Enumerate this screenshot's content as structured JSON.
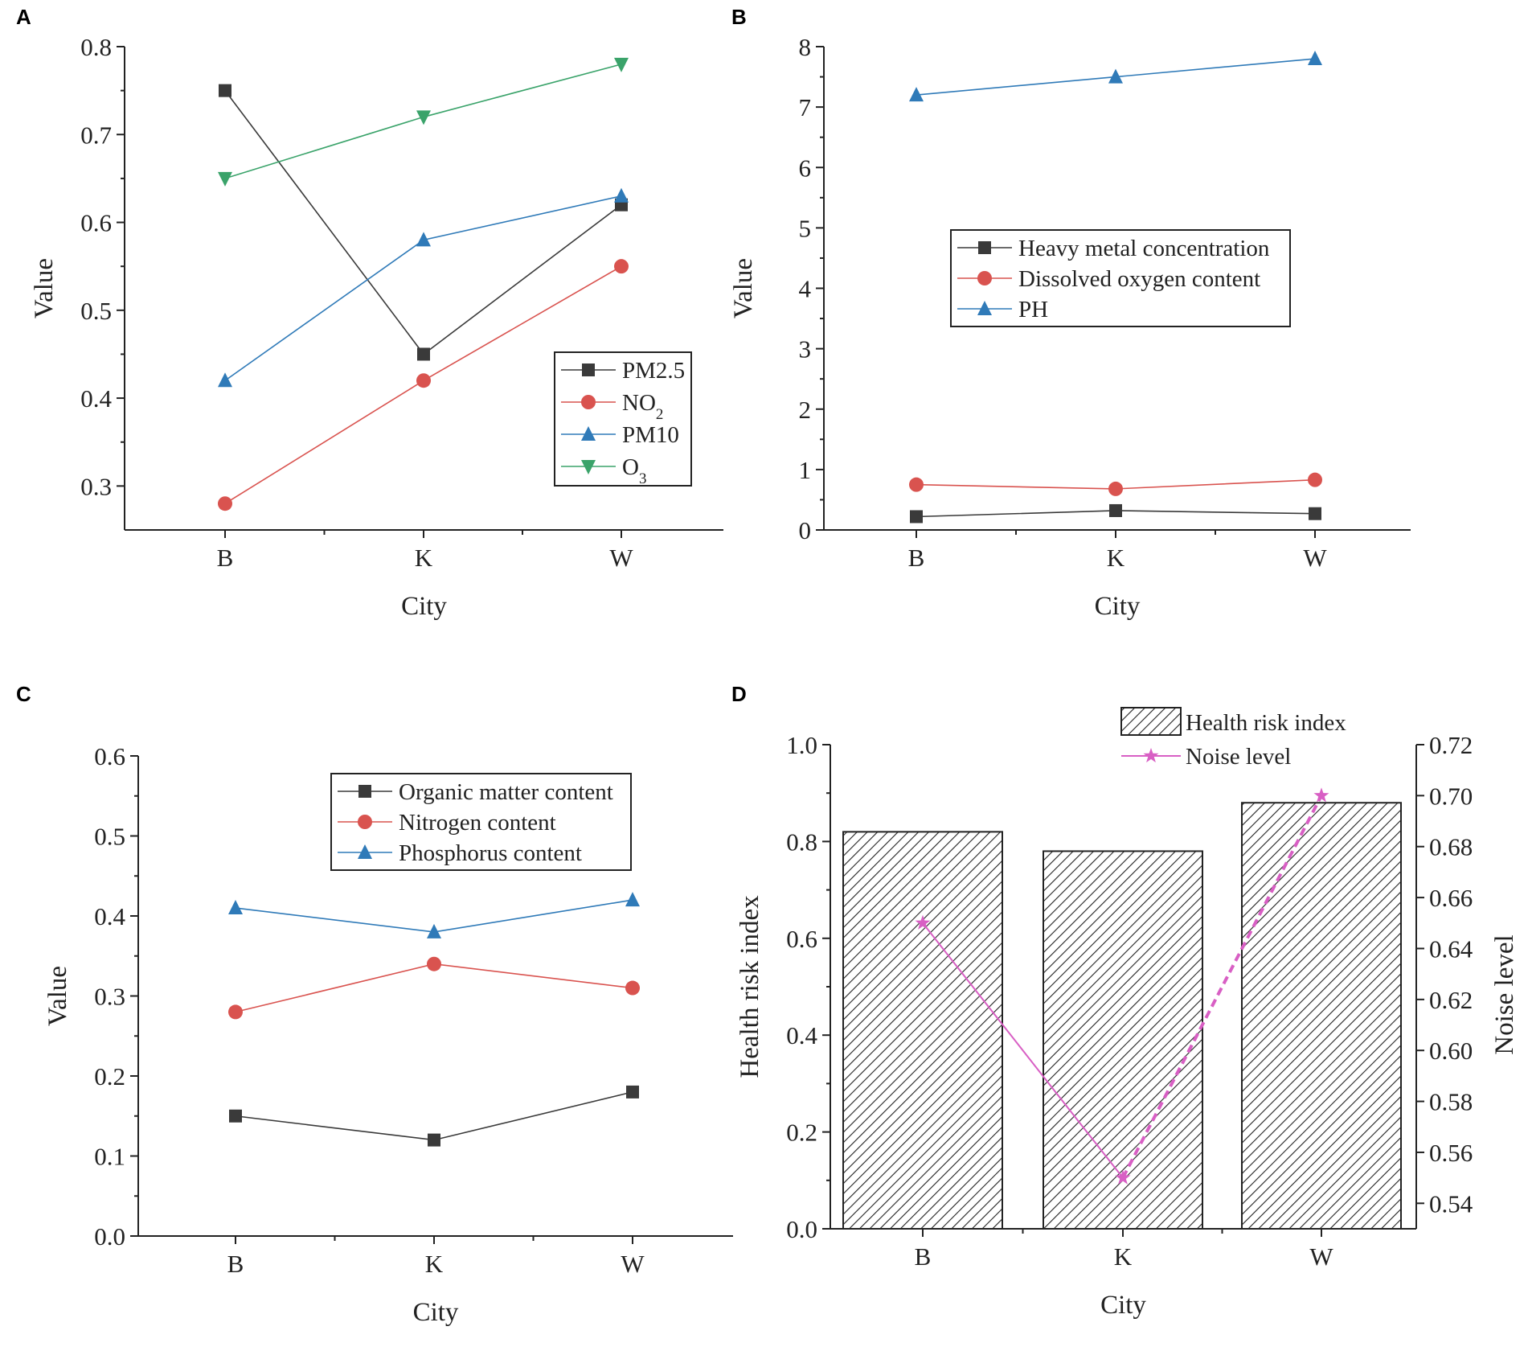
{
  "chart_data": [
    {
      "panel": "A",
      "type": "line",
      "categories": [
        "B",
        "K",
        "W"
      ],
      "series": [
        {
          "name": "PM2.5",
          "values": [
            0.75,
            0.45,
            0.62
          ],
          "color": "#3a3a3a",
          "marker": "square"
        },
        {
          "name": "NO",
          "sub": "2",
          "values": [
            0.28,
            0.42,
            0.55
          ],
          "color": "#d9534f",
          "marker": "circle"
        },
        {
          "name": "PM10",
          "values": [
            0.42,
            0.58,
            0.63
          ],
          "color": "#2f7ab8",
          "marker": "triangle-up"
        },
        {
          "name": "O",
          "sub": "3",
          "values": [
            0.65,
            0.72,
            0.78
          ],
          "color": "#3aa36a",
          "marker": "triangle-down"
        }
      ],
      "xlabel": "City",
      "ylabel": "Value",
      "ylim": [
        0.25,
        0.8
      ],
      "yticks": [
        0.3,
        0.4,
        0.5,
        0.6,
        0.7,
        0.8
      ],
      "ytick_labels": [
        "0.3",
        "0.4",
        "0.5",
        "0.6",
        "0.7",
        "0.8"
      ],
      "legend": "bottom-right"
    },
    {
      "panel": "B",
      "type": "line",
      "categories": [
        "B",
        "K",
        "W"
      ],
      "series": [
        {
          "name": "Heavy metal concentration",
          "values": [
            0.22,
            0.32,
            0.27
          ],
          "color": "#3a3a3a",
          "marker": "square"
        },
        {
          "name": "Dissolved oxygen content",
          "values": [
            0.75,
            0.68,
            0.83
          ],
          "color": "#d9534f",
          "marker": "circle"
        },
        {
          "name": "PH",
          "values": [
            7.2,
            7.5,
            7.8
          ],
          "color": "#2f7ab8",
          "marker": "triangle-up"
        }
      ],
      "xlabel": "City",
      "ylabel": "Value",
      "ylim": [
        0,
        8
      ],
      "yticks": [
        0,
        1,
        2,
        3,
        4,
        5,
        6,
        7,
        8
      ],
      "ytick_labels": [
        "0",
        "1",
        "2",
        "3",
        "4",
        "5",
        "6",
        "7",
        "8"
      ],
      "legend": "center"
    },
    {
      "panel": "C",
      "type": "line",
      "categories": [
        "B",
        "K",
        "W"
      ],
      "series": [
        {
          "name": "Organic matter content",
          "values": [
            0.15,
            0.12,
            0.18
          ],
          "color": "#3a3a3a",
          "marker": "square"
        },
        {
          "name": "Nitrogen content",
          "values": [
            0.28,
            0.34,
            0.31
          ],
          "color": "#d9534f",
          "marker": "circle"
        },
        {
          "name": "Phosphorus content",
          "values": [
            0.41,
            0.38,
            0.42
          ],
          "color": "#2f7ab8",
          "marker": "triangle-up"
        }
      ],
      "xlabel": "City",
      "ylabel": "Value",
      "ylim": [
        0,
        0.6
      ],
      "yticks": [
        0,
        0.1,
        0.2,
        0.3,
        0.4,
        0.5,
        0.6
      ],
      "ytick_labels": [
        "0.0",
        "0.1",
        "0.2",
        "0.3",
        "0.4",
        "0.5",
        "0.6"
      ],
      "legend": "top-center"
    },
    {
      "panel": "D",
      "type": "bar",
      "categories": [
        "B",
        "K",
        "W"
      ],
      "bars": {
        "name": "Health risk index",
        "values": [
          0.82,
          0.78,
          0.88
        ]
      },
      "line": {
        "name": "Noise level",
        "values": [
          0.65,
          0.55,
          0.7
        ],
        "color": "#d85fc4",
        "marker": "star"
      },
      "xlabel": "City",
      "ylabel": "Health risk index",
      "y2label": "Noise level",
      "ylim": [
        0,
        1
      ],
      "y2lim": [
        0.53,
        0.72
      ],
      "yticks": [
        0,
        0.2,
        0.4,
        0.6,
        0.8,
        1
      ],
      "ytick_labels": [
        "0.0",
        "0.2",
        "0.4",
        "0.6",
        "0.8",
        "1.0"
      ],
      "y2ticks": [
        0.54,
        0.56,
        0.58,
        0.6,
        0.62,
        0.64,
        0.66,
        0.68,
        0.7,
        0.72
      ],
      "y2tick_labels": [
        "0.54",
        "0.56",
        "0.58",
        "0.60",
        "0.62",
        "0.64",
        "0.66",
        "0.68",
        "0.70",
        "0.72"
      ],
      "legend": "top-right"
    }
  ]
}
